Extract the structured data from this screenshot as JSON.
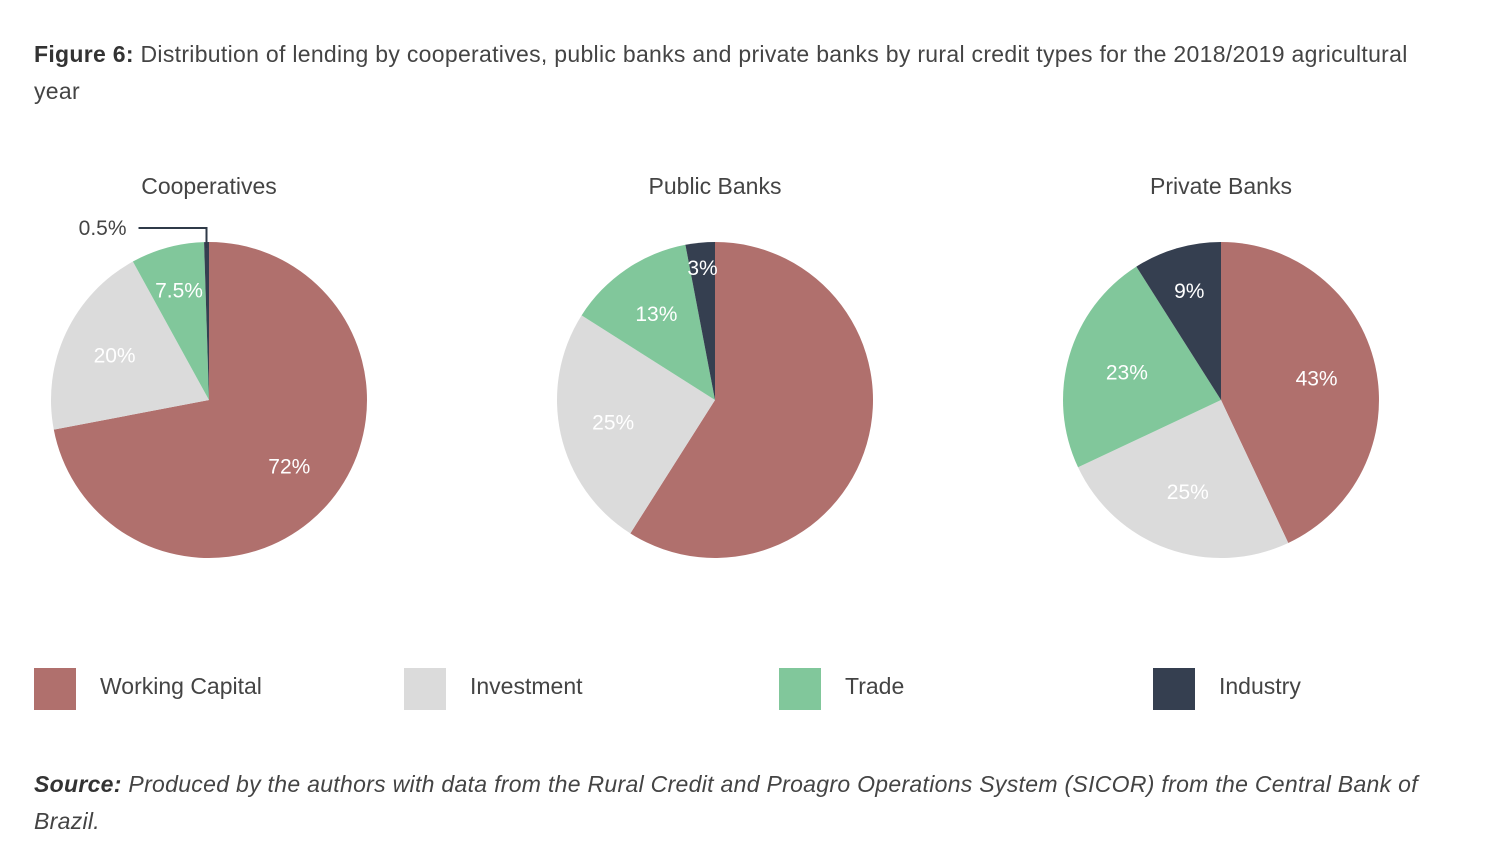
{
  "caption": {
    "figure_label": "Figure 6:",
    "text": " Distribution of lending by cooperatives, public banks and private banks by rural credit types for the 2018/2019 agricultural year"
  },
  "legend": [
    {
      "label": "Working Capital",
      "color": "#b0706d"
    },
    {
      "label": "Investment",
      "color": "#dbdbdb"
    },
    {
      "label": "Trade",
      "color": "#81c79b"
    },
    {
      "label": "Industry",
      "color": "#353f50"
    }
  ],
  "chart_data": [
    {
      "type": "pie",
      "title": "Cooperatives",
      "slices": [
        {
          "category": "Working Capital",
          "value": 72,
          "label": "72%"
        },
        {
          "category": "Investment",
          "value": 20,
          "label": "20%"
        },
        {
          "category": "Trade",
          "value": 7.5,
          "label": "7.5%"
        },
        {
          "category": "Industry",
          "value": 0.5,
          "label": "0.5%"
        }
      ]
    },
    {
      "type": "pie",
      "title": "Public Banks",
      "slices": [
        {
          "category": "Working Capital",
          "value": 59,
          "label": ""
        },
        {
          "category": "Investment",
          "value": 25,
          "label": "25%"
        },
        {
          "category": "Trade",
          "value": 13,
          "label": "13%"
        },
        {
          "category": "Industry",
          "value": 3,
          "label": "3%"
        }
      ]
    },
    {
      "type": "pie",
      "title": "Private Banks",
      "slices": [
        {
          "category": "Working Capital",
          "value": 43,
          "label": "43%"
        },
        {
          "category": "Investment",
          "value": 25,
          "label": "25%"
        },
        {
          "category": "Trade",
          "value": 23,
          "label": "23%"
        },
        {
          "category": "Industry",
          "value": 9,
          "label": "9%"
        }
      ]
    }
  ],
  "source": {
    "label": "Source:",
    "text": " Produced by the authors with data from the Rural Credit and Proagro Operations System (SICOR) from the Central Bank of Brazil."
  }
}
